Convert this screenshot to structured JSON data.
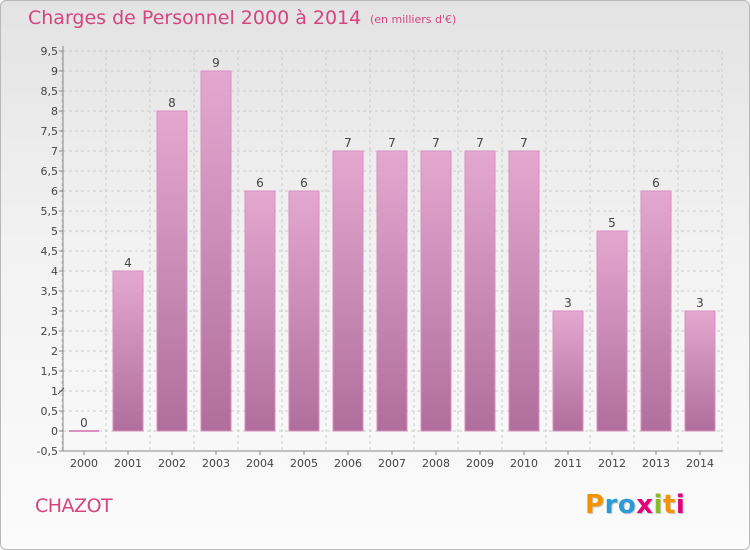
{
  "header": {
    "title": "Charges de Personnel 2000 à 2014",
    "unit": "(en milliers d'€)"
  },
  "footer": {
    "commune": "CHAZOT",
    "logo": "Proxiti",
    "logo_colors": [
      "#f29400",
      "#2c9ad6",
      "#2c9ad6",
      "#e2007a",
      "#8bbb25",
      "#f29400",
      "#e2007a"
    ]
  },
  "colors": {
    "title": "#d4447e",
    "bar_top": "#e4a8d0",
    "bar_bottom": "#b06e9c",
    "bar_edge": "#d98fbf",
    "grid": "#cccccc"
  },
  "chart_data": {
    "type": "bar",
    "categories": [
      "2000",
      "2001",
      "2002",
      "2003",
      "2004",
      "2005",
      "2006",
      "2007",
      "2008",
      "2009",
      "2010",
      "2011",
      "2012",
      "2013",
      "2014"
    ],
    "values": [
      0,
      4,
      8,
      9,
      6,
      6,
      7,
      7,
      7,
      7,
      7,
      3,
      5,
      6,
      3
    ],
    "data_labels": [
      "0",
      "4",
      "8",
      "9",
      "6",
      "6",
      "7",
      "7",
      "7",
      "7",
      "7",
      "3",
      "5",
      "6",
      "3"
    ],
    "ytick_labels": [
      "-0,5",
      "0",
      "0,5",
      "1",
      "1,5",
      "2",
      "2,5",
      "3",
      "3,5",
      "4",
      "4,5",
      "5",
      "5,5",
      "6",
      "6,5",
      "7",
      "7,5",
      "8",
      "8,5",
      "9",
      "9,5"
    ],
    "ylim": [
      -0.5,
      9.5
    ],
    "grid": true,
    "legend": "none"
  }
}
